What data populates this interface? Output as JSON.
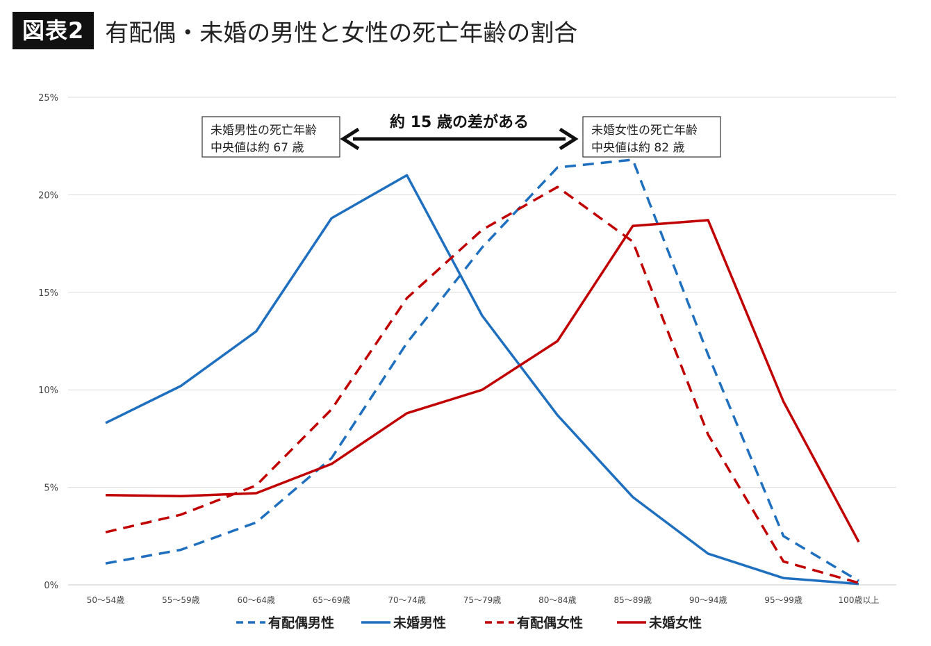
{
  "header": {
    "badge": "図表2",
    "title": "有配偶・未婚の男性と女性の死亡年齢の割合"
  },
  "chart_data": {
    "type": "line",
    "categories": [
      "50〜54歳",
      "55〜59歳",
      "60〜64歳",
      "65〜69歳",
      "70〜74歳",
      "75〜79歳",
      "80〜84歳",
      "85〜89歳",
      "90〜94歳",
      "95〜99歳",
      "100歳以上"
    ],
    "y_ticks": [
      "0%",
      "5%",
      "10%",
      "15%",
      "20%",
      "25%"
    ],
    "ylim": [
      0,
      25
    ],
    "grid": true,
    "legend_position": "bottom",
    "series": [
      {
        "name": "有配偶男性",
        "color": "#1f6fbf",
        "dashed": true,
        "values": [
          1.1,
          1.8,
          3.2,
          6.5,
          12.4,
          17.3,
          21.4,
          21.8,
          11.8,
          2.5,
          0.2
        ]
      },
      {
        "name": "未婚男性",
        "color": "#1f6fbf",
        "dashed": false,
        "values": [
          8.3,
          10.2,
          13.0,
          18.8,
          21.0,
          13.8,
          8.7,
          4.5,
          1.6,
          0.35,
          0.05
        ]
      },
      {
        "name": "有配偶女性",
        "color": "#c00000",
        "dashed": true,
        "values": [
          2.7,
          3.6,
          5.1,
          9.0,
          14.7,
          18.2,
          20.4,
          17.6,
          7.7,
          1.2,
          0.1
        ]
      },
      {
        "name": "未婚女性",
        "color": "#c00000",
        "dashed": false,
        "values": [
          4.6,
          4.55,
          4.7,
          6.2,
          8.8,
          10.0,
          12.5,
          18.4,
          18.7,
          9.4,
          2.2
        ]
      }
    ],
    "annotations": {
      "male_box": [
        "未婚男性の死亡年齢",
        "中央値は約 67 歳"
      ],
      "female_box": [
        "未婚女性の死亡年齢",
        "中央値は約 82 歳"
      ],
      "arrow_label": "約 15 歳の差がある"
    }
  }
}
